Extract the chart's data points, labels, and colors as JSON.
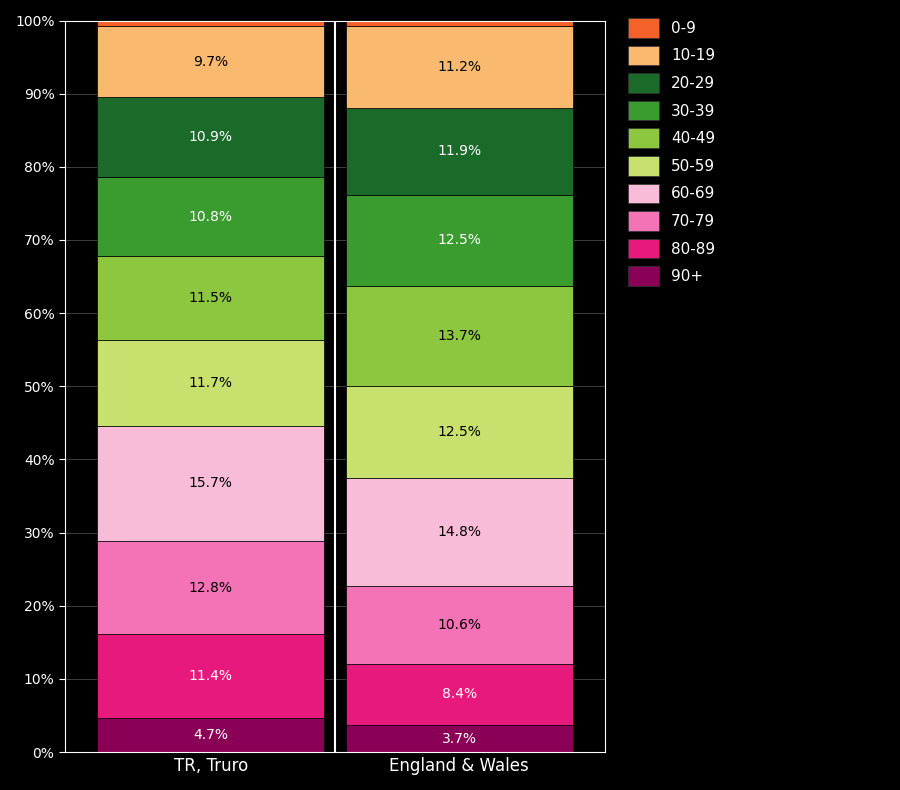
{
  "categories": [
    "TR, Truro",
    "England & Wales"
  ],
  "colors": {
    "0-9": "#f4622a",
    "10-19": "#f9b96e",
    "20-29": "#1a6b2a",
    "30-39": "#3a9c2e",
    "40-49": "#8dc63f",
    "50-59": "#c8e06e",
    "60-69": "#f9bcd8",
    "70-79": "#f472b6",
    "80-89": "#e8197d",
    "90+": "#8b0057"
  },
  "values": {
    "TR, Truro": {
      "90+": 4.7,
      "80-89": 11.4,
      "70-79": 12.8,
      "60-69": 15.7,
      "50-59": 11.7,
      "40-49": 11.5,
      "30-39": 10.8,
      "20-29": 10.9,
      "10-19": 9.7,
      "0-9": 0.8
    },
    "England & Wales": {
      "90+": 3.7,
      "80-89": 8.4,
      "70-79": 10.6,
      "60-69": 14.8,
      "50-59": 12.5,
      "40-49": 13.7,
      "30-39": 12.5,
      "20-29": 11.9,
      "10-19": 11.2,
      "0-9": 0.7
    }
  },
  "stack_order": [
    "90+",
    "80-89",
    "70-79",
    "60-69",
    "50-59",
    "40-49",
    "30-39",
    "20-29",
    "10-19",
    "0-9"
  ],
  "legend_order": [
    "0-9",
    "10-19",
    "20-29",
    "30-39",
    "40-49",
    "50-59",
    "60-69",
    "70-79",
    "80-89",
    "90+"
  ],
  "label_text_colors": {
    "0-9": "#000000",
    "10-19": "#000000",
    "20-29": "#ffffff",
    "30-39": "#ffffff",
    "40-49": "#000000",
    "50-59": "#000000",
    "60-69": "#000000",
    "70-79": "#000000",
    "80-89": "#ffffff",
    "90+": "#ffffff"
  },
  "background_color": "#000000",
  "text_color": "#ffffff",
  "bar_edge_color": "#000000",
  "figsize": [
    9.0,
    7.9
  ],
  "dpi": 100
}
